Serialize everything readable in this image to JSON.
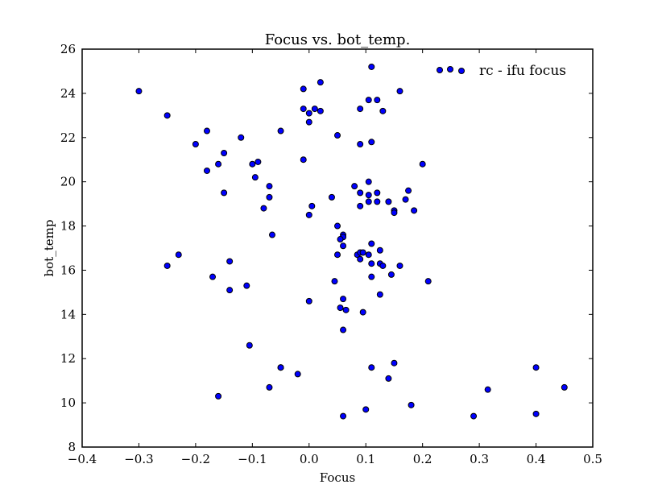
{
  "chart_data": {
    "type": "scatter",
    "title": "Focus vs. bot_temp.",
    "xlabel": "Focus",
    "ylabel": "bot_temp",
    "xlim": [
      -0.4,
      0.5
    ],
    "ylim": [
      8,
      26
    ],
    "xticks": [
      "−0.4",
      "−0.3",
      "−0.2",
      "−0.1",
      "0.0",
      "0.1",
      "0.2",
      "0.3",
      "0.4",
      "0.5"
    ],
    "yticks": [
      "8",
      "10",
      "12",
      "14",
      "16",
      "18",
      "20",
      "22",
      "24",
      "26"
    ],
    "grid": false,
    "legend_position": "top-right",
    "marker_color": "#0000ff",
    "series": [
      {
        "name": "rc - ifu focus",
        "points": [
          [
            -0.3,
            24.1
          ],
          [
            -0.25,
            23.0
          ],
          [
            -0.18,
            22.3
          ],
          [
            -0.2,
            21.7
          ],
          [
            -0.15,
            21.3
          ],
          [
            -0.16,
            20.8
          ],
          [
            -0.18,
            20.5
          ],
          [
            -0.12,
            22.0
          ],
          [
            -0.09,
            20.9
          ],
          [
            -0.1,
            20.8
          ],
          [
            -0.095,
            20.2
          ],
          [
            -0.15,
            19.5
          ],
          [
            -0.07,
            19.8
          ],
          [
            -0.07,
            19.3
          ],
          [
            -0.08,
            18.8
          ],
          [
            -0.065,
            17.6
          ],
          [
            -0.25,
            16.2
          ],
          [
            -0.23,
            16.7
          ],
          [
            -0.14,
            16.4
          ],
          [
            -0.17,
            15.7
          ],
          [
            -0.14,
            15.1
          ],
          [
            -0.11,
            15.3
          ],
          [
            -0.105,
            12.6
          ],
          [
            -0.05,
            11.6
          ],
          [
            -0.05,
            11.6
          ],
          [
            -0.02,
            11.3
          ],
          [
            -0.07,
            10.7
          ],
          [
            -0.16,
            10.3
          ],
          [
            -0.01,
            24.2
          ],
          [
            0.02,
            24.5
          ],
          [
            -0.01,
            23.3
          ],
          [
            0.0,
            23.1
          ],
          [
            0.01,
            23.3
          ],
          [
            0.02,
            23.2
          ],
          [
            0.0,
            22.7
          ],
          [
            -0.05,
            22.3
          ],
          [
            -0.01,
            21.0
          ],
          [
            0.05,
            22.1
          ],
          [
            0.005,
            18.9
          ],
          [
            0.0,
            18.5
          ],
          [
            0.04,
            19.3
          ],
          [
            0.0,
            14.6
          ],
          [
            0.11,
            25.2
          ],
          [
            0.105,
            23.7
          ],
          [
            0.12,
            23.7
          ],
          [
            0.09,
            23.3
          ],
          [
            0.13,
            23.2
          ],
          [
            0.16,
            24.1
          ],
          [
            0.09,
            21.7
          ],
          [
            0.11,
            21.8
          ],
          [
            0.08,
            19.8
          ],
          [
            0.105,
            20.0
          ],
          [
            0.09,
            19.5
          ],
          [
            0.105,
            19.4
          ],
          [
            0.12,
            19.5
          ],
          [
            0.105,
            19.1
          ],
          [
            0.12,
            19.1
          ],
          [
            0.14,
            19.1
          ],
          [
            0.15,
            18.7
          ],
          [
            0.15,
            18.6
          ],
          [
            0.17,
            19.2
          ],
          [
            0.175,
            19.6
          ],
          [
            0.185,
            18.7
          ],
          [
            0.2,
            20.8
          ],
          [
            0.09,
            18.9
          ],
          [
            0.05,
            18.0
          ],
          [
            0.06,
            17.6
          ],
          [
            0.06,
            17.5
          ],
          [
            0.055,
            17.4
          ],
          [
            0.06,
            17.1
          ],
          [
            0.11,
            17.2
          ],
          [
            0.125,
            16.9
          ],
          [
            0.05,
            16.7
          ],
          [
            0.085,
            16.7
          ],
          [
            0.09,
            16.8
          ],
          [
            0.095,
            16.8
          ],
          [
            0.105,
            16.7
          ],
          [
            0.09,
            16.5
          ],
          [
            0.11,
            16.3
          ],
          [
            0.125,
            16.3
          ],
          [
            0.13,
            16.2
          ],
          [
            0.16,
            16.2
          ],
          [
            0.145,
            15.8
          ],
          [
            0.11,
            15.7
          ],
          [
            0.21,
            15.5
          ],
          [
            0.045,
            15.5
          ],
          [
            0.125,
            14.9
          ],
          [
            0.06,
            14.7
          ],
          [
            0.055,
            14.3
          ],
          [
            0.065,
            14.2
          ],
          [
            0.095,
            14.1
          ],
          [
            0.06,
            13.3
          ],
          [
            0.11,
            11.6
          ],
          [
            0.15,
            11.8
          ],
          [
            0.14,
            11.1
          ],
          [
            0.18,
            9.9
          ],
          [
            0.1,
            9.7
          ],
          [
            0.06,
            9.4
          ],
          [
            0.29,
            9.4
          ],
          [
            0.315,
            10.6
          ],
          [
            0.4,
            11.6
          ],
          [
            0.4,
            9.5
          ],
          [
            0.45,
            10.7
          ]
        ]
      }
    ]
  }
}
